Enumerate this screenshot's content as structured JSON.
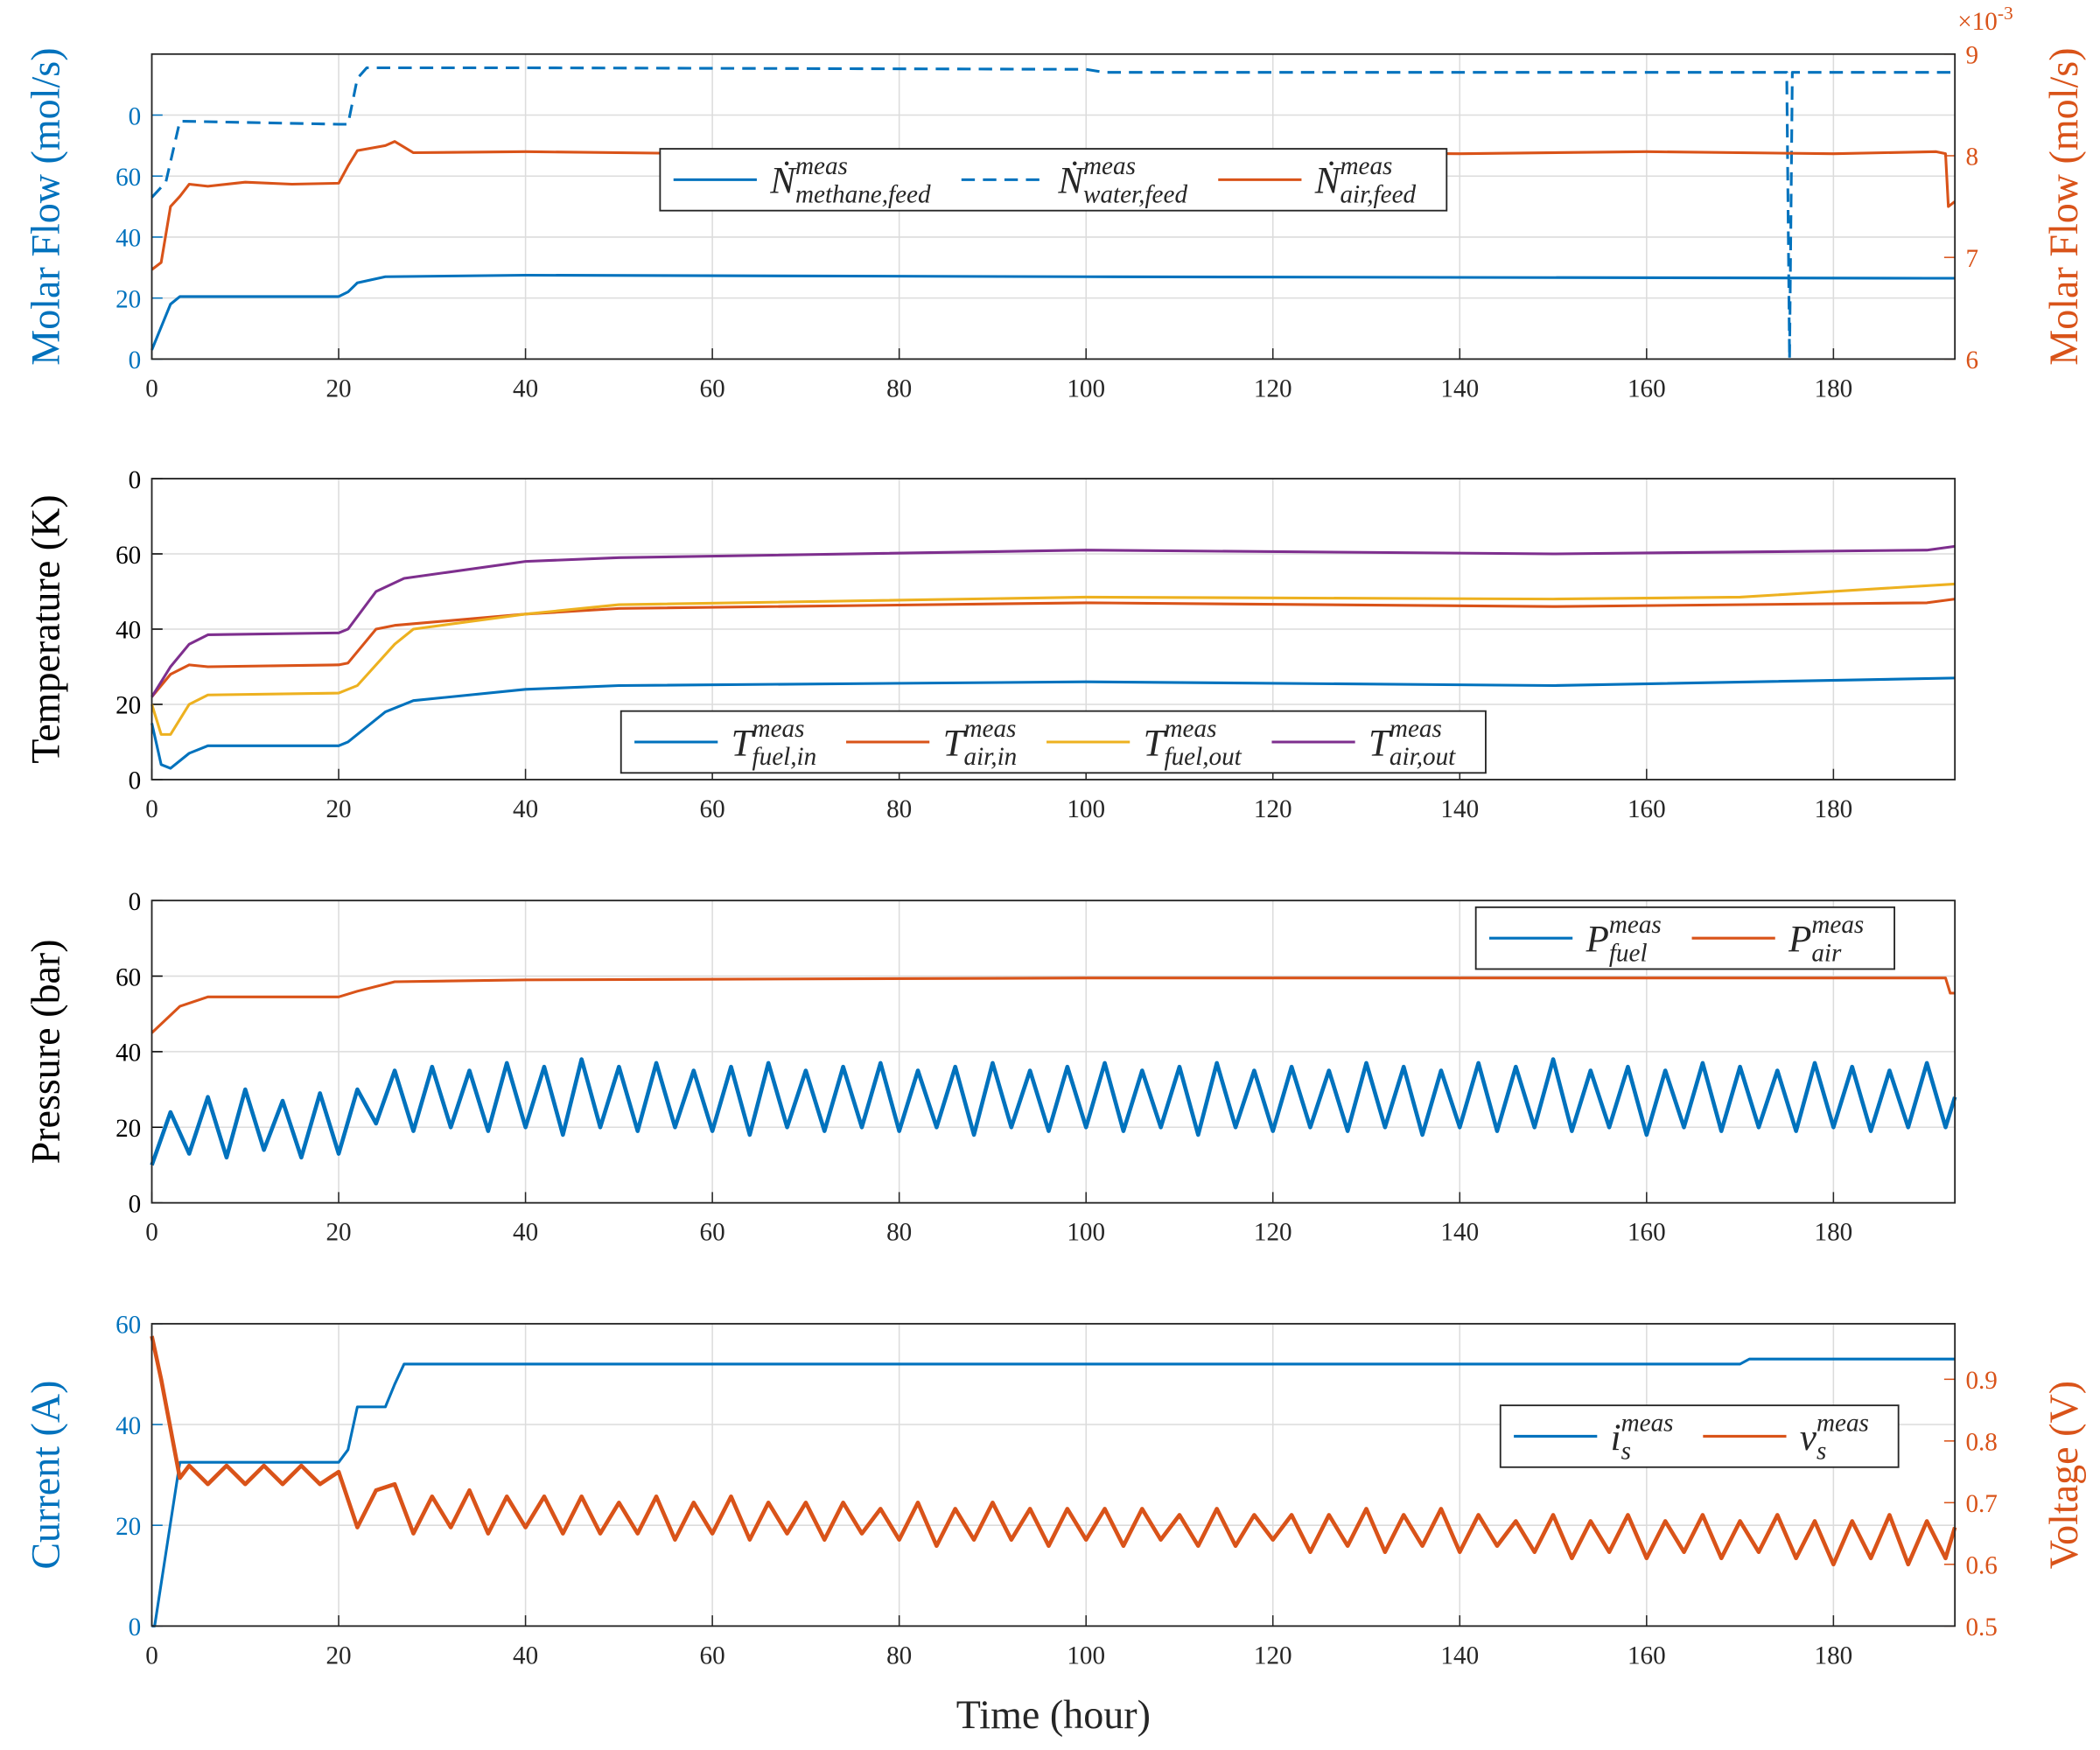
{
  "chart_data": [
    {
      "type": "line",
      "ylabel": "Molar Flow (mol/s)",
      "y2label": "Molar Flow (mol/s)",
      "y_color": "#0072bd",
      "y2_color": "#d95319",
      "y2_multiplier": "×10",
      "y2_exponent": "-3",
      "xlim": [
        0,
        193
      ],
      "xticks": [
        0,
        20,
        40,
        60,
        80,
        100,
        120,
        140,
        160,
        180
      ],
      "ylim": [
        0,
        100
      ],
      "yticks": [
        0,
        20,
        40,
        60,
        {
          "value": 80,
          "label": "0"
        }
      ],
      "y2lim": [
        6,
        9
      ],
      "y2ticks": [
        6,
        7,
        8,
        9
      ],
      "grid": true,
      "legend": "center",
      "series": [
        {
          "name": "Ṅ",
          "sup": "meas",
          "sub": "methane,feed",
          "color": "#0072bd",
          "x": [
            0,
            2,
            3,
            20,
            21,
            22,
            25,
            40,
            100,
            190,
            193
          ],
          "values": [
            3,
            18,
            20.5,
            20.5,
            22,
            25,
            27,
            27.5,
            27,
            26.5,
            26.5
          ]
        },
        {
          "name": "Ṅ",
          "sup": "meas",
          "sub": "water,feed",
          "color": "#0072bd",
          "dash": true,
          "x": [
            0,
            1.5,
            3,
            20,
            21,
            22,
            23,
            40,
            100,
            102,
            175,
            175.3,
            175.6,
            193
          ],
          "values": [
            53,
            58,
            78,
            77,
            77,
            92,
            95.5,
            95.5,
            95,
            94,
            94,
            0,
            94,
            94
          ]
        },
        {
          "name": "Ṅ",
          "sup": "meas",
          "sub": "air,feed",
          "color": "#d95319",
          "axis": "y2",
          "x": [
            0,
            1,
            2,
            3,
            4,
            6,
            10,
            15,
            20,
            21,
            22,
            25,
            26,
            28,
            40,
            60,
            80,
            100,
            120,
            140,
            160,
            180,
            191,
            192,
            192.3,
            193
          ],
          "values": [
            6.88,
            6.95,
            7.5,
            7.6,
            7.72,
            7.7,
            7.74,
            7.72,
            7.73,
            7.9,
            8.05,
            8.1,
            8.14,
            8.03,
            8.04,
            8.02,
            8.04,
            8.02,
            8.03,
            8.02,
            8.04,
            8.02,
            8.04,
            8.02,
            7.5,
            7.55
          ]
        }
      ]
    },
    {
      "type": "line",
      "ylabel": "Temperature (K)",
      "y_color": "#000000",
      "xlim": [
        0,
        193
      ],
      "xticks": [
        0,
        20,
        40,
        60,
        80,
        100,
        120,
        140,
        160,
        180
      ],
      "ylim": [
        0,
        80
      ],
      "yticks": [
        0,
        20,
        40,
        60,
        {
          "value": 80,
          "label": "0"
        }
      ],
      "grid": true,
      "legend": "lower center",
      "series": [
        {
          "name": "T",
          "sup": "meas",
          "sub": "fuel,in",
          "color": "#0072bd",
          "x": [
            0,
            1,
            2,
            4,
            6,
            20,
            21,
            25,
            28,
            40,
            50,
            100,
            150,
            193
          ],
          "values": [
            15,
            4,
            3,
            7,
            9,
            9,
            10,
            18,
            21,
            24,
            25,
            26,
            25,
            27
          ]
        },
        {
          "name": "T",
          "sup": "meas",
          "sub": "air,in",
          "color": "#d95319",
          "x": [
            0,
            2,
            4,
            6,
            20,
            21,
            24,
            26,
            40,
            50,
            100,
            150,
            190,
            193
          ],
          "values": [
            22,
            28,
            30.5,
            30,
            30.5,
            31,
            40,
            41,
            44,
            45.5,
            47,
            46,
            47,
            48
          ]
        },
        {
          "name": "T",
          "sup": "meas",
          "sub": "fuel,out",
          "color": "#edb120",
          "x": [
            0,
            1,
            2,
            4,
            6,
            20,
            22,
            26,
            28,
            40,
            50,
            100,
            150,
            170,
            193
          ],
          "values": [
            20,
            12,
            12,
            20,
            22.5,
            23,
            25,
            36,
            40,
            44,
            46.5,
            48.5,
            48,
            48.5,
            52
          ]
        },
        {
          "name": "T",
          "sup": "meas",
          "sub": "air,out",
          "color": "#7e2f8e",
          "x": [
            0,
            2,
            4,
            6,
            20,
            21,
            24,
            27,
            40,
            50,
            100,
            150,
            190,
            193
          ],
          "values": [
            22,
            30,
            36,
            38.5,
            39,
            40,
            50,
            53.5,
            58,
            59,
            61,
            60,
            61,
            62
          ]
        }
      ]
    },
    {
      "type": "line",
      "ylabel": "Pressure (bar)",
      "y_color": "#000000",
      "xlim": [
        0,
        193
      ],
      "xticks": [
        0,
        20,
        40,
        60,
        80,
        100,
        120,
        140,
        160,
        180
      ],
      "ylim": [
        0,
        80
      ],
      "yticks": [
        0,
        20,
        40,
        60,
        {
          "value": 80,
          "label": "0"
        }
      ],
      "grid": true,
      "legend": "upper right",
      "series": [
        {
          "name": "P",
          "sup": "meas",
          "sub": "fuel",
          "color": "#0072bd",
          "noisy": true,
          "x": [
            0,
            2,
            4,
            6,
            8,
            10,
            12,
            14,
            16,
            18,
            20,
            22,
            24,
            26,
            28,
            30,
            32,
            34,
            36,
            38,
            40,
            42,
            44,
            46,
            48,
            50,
            52,
            54,
            56,
            58,
            60,
            62,
            64,
            66,
            68,
            70,
            72,
            74,
            76,
            78,
            80,
            82,
            84,
            86,
            88,
            90,
            92,
            94,
            96,
            98,
            100,
            102,
            104,
            106,
            108,
            110,
            112,
            114,
            116,
            118,
            120,
            122,
            124,
            126,
            128,
            130,
            132,
            134,
            136,
            138,
            140,
            142,
            144,
            146,
            148,
            150,
            152,
            154,
            156,
            158,
            160,
            162,
            164,
            166,
            168,
            170,
            172,
            174,
            176,
            178,
            180,
            182,
            184,
            186,
            188,
            190,
            192,
            193
          ],
          "values": [
            10,
            24,
            13,
            28,
            12,
            30,
            14,
            27,
            12,
            29,
            13,
            30,
            21,
            35,
            19,
            36,
            20,
            35,
            19,
            37,
            20,
            36,
            18,
            38,
            20,
            36,
            19,
            37,
            20,
            35,
            19,
            36,
            18,
            37,
            20,
            35,
            19,
            36,
            20,
            37,
            19,
            35,
            20,
            36,
            18,
            37,
            20,
            35,
            19,
            36,
            20,
            37,
            19,
            35,
            20,
            36,
            18,
            37,
            20,
            35,
            19,
            36,
            20,
            35,
            19,
            37,
            20,
            36,
            18,
            35,
            20,
            37,
            19,
            36,
            20,
            38,
            19,
            35,
            20,
            36,
            18,
            35,
            20,
            37,
            19,
            36,
            20,
            35,
            19,
            37,
            20,
            36,
            19,
            35,
            20,
            37,
            20,
            28
          ]
        },
        {
          "name": "P",
          "sup": "meas",
          "sub": "air",
          "color": "#d95319",
          "x": [
            0,
            3,
            6,
            20,
            22,
            26,
            40,
            100,
            192,
            192.5,
            193
          ],
          "values": [
            45,
            52,
            54.5,
            54.5,
            56,
            58.5,
            59,
            59.5,
            59.5,
            55.5,
            55.5
          ]
        }
      ]
    },
    {
      "type": "line",
      "ylabel": "Current (A)",
      "y2label": "Voltage (V)",
      "xlabel": "Time (hour)",
      "y_color": "#0072bd",
      "y2_color": "#d95319",
      "xlim": [
        0,
        193
      ],
      "xticks": [
        0,
        20,
        40,
        60,
        80,
        100,
        120,
        140,
        160,
        180
      ],
      "ylim": [
        0,
        60
      ],
      "yticks": [
        0,
        20,
        40,
        60
      ],
      "y2lim": [
        0.5,
        0.99
      ],
      "y2ticks": [
        0.5,
        0.6,
        0.7,
        0.8,
        0.9
      ],
      "grid": true,
      "legend": "right",
      "series": [
        {
          "name": "i",
          "sup": "meas",
          "sub": "s",
          "color": "#0072bd",
          "x": [
            0,
            0.3,
            3,
            20,
            21,
            22,
            25,
            26,
            27,
            170,
            171,
            193
          ],
          "values": [
            0,
            0,
            32.5,
            32.5,
            35,
            43.5,
            43.5,
            48,
            52,
            52,
            53,
            53
          ]
        },
        {
          "name": "v",
          "sup": "meas",
          "sub": "s",
          "color": "#d95319",
          "axis": "y2",
          "noisy": true,
          "x": [
            0,
            1,
            2,
            3,
            4,
            6,
            8,
            10,
            12,
            14,
            16,
            18,
            20,
            22,
            24,
            26,
            28,
            30,
            32,
            34,
            36,
            38,
            40,
            42,
            44,
            46,
            48,
            50,
            52,
            54,
            56,
            58,
            60,
            62,
            64,
            66,
            68,
            70,
            72,
            74,
            76,
            78,
            80,
            82,
            84,
            86,
            88,
            90,
            92,
            94,
            96,
            98,
            100,
            102,
            104,
            106,
            108,
            110,
            112,
            114,
            116,
            118,
            120,
            122,
            124,
            126,
            128,
            130,
            132,
            134,
            136,
            138,
            140,
            142,
            144,
            146,
            148,
            150,
            152,
            154,
            156,
            158,
            160,
            162,
            164,
            166,
            168,
            170,
            172,
            174,
            176,
            178,
            180,
            182,
            184,
            186,
            188,
            190,
            192,
            193
          ],
          "values": [
            0.97,
            0.9,
            0.82,
            0.74,
            0.76,
            0.73,
            0.76,
            0.73,
            0.76,
            0.73,
            0.76,
            0.73,
            0.75,
            0.66,
            0.72,
            0.73,
            0.65,
            0.71,
            0.66,
            0.72,
            0.65,
            0.71,
            0.66,
            0.71,
            0.65,
            0.71,
            0.65,
            0.7,
            0.65,
            0.71,
            0.64,
            0.7,
            0.65,
            0.71,
            0.64,
            0.7,
            0.65,
            0.7,
            0.64,
            0.7,
            0.65,
            0.69,
            0.64,
            0.7,
            0.63,
            0.69,
            0.64,
            0.7,
            0.64,
            0.69,
            0.63,
            0.69,
            0.64,
            0.69,
            0.63,
            0.69,
            0.64,
            0.68,
            0.63,
            0.69,
            0.63,
            0.68,
            0.64,
            0.68,
            0.62,
            0.68,
            0.63,
            0.69,
            0.62,
            0.68,
            0.63,
            0.69,
            0.62,
            0.68,
            0.63,
            0.67,
            0.62,
            0.68,
            0.61,
            0.67,
            0.62,
            0.68,
            0.61,
            0.67,
            0.62,
            0.68,
            0.61,
            0.67,
            0.62,
            0.68,
            0.61,
            0.67,
            0.6,
            0.67,
            0.61,
            0.68,
            0.6,
            0.67,
            0.61,
            0.66
          ]
        }
      ]
    }
  ]
}
